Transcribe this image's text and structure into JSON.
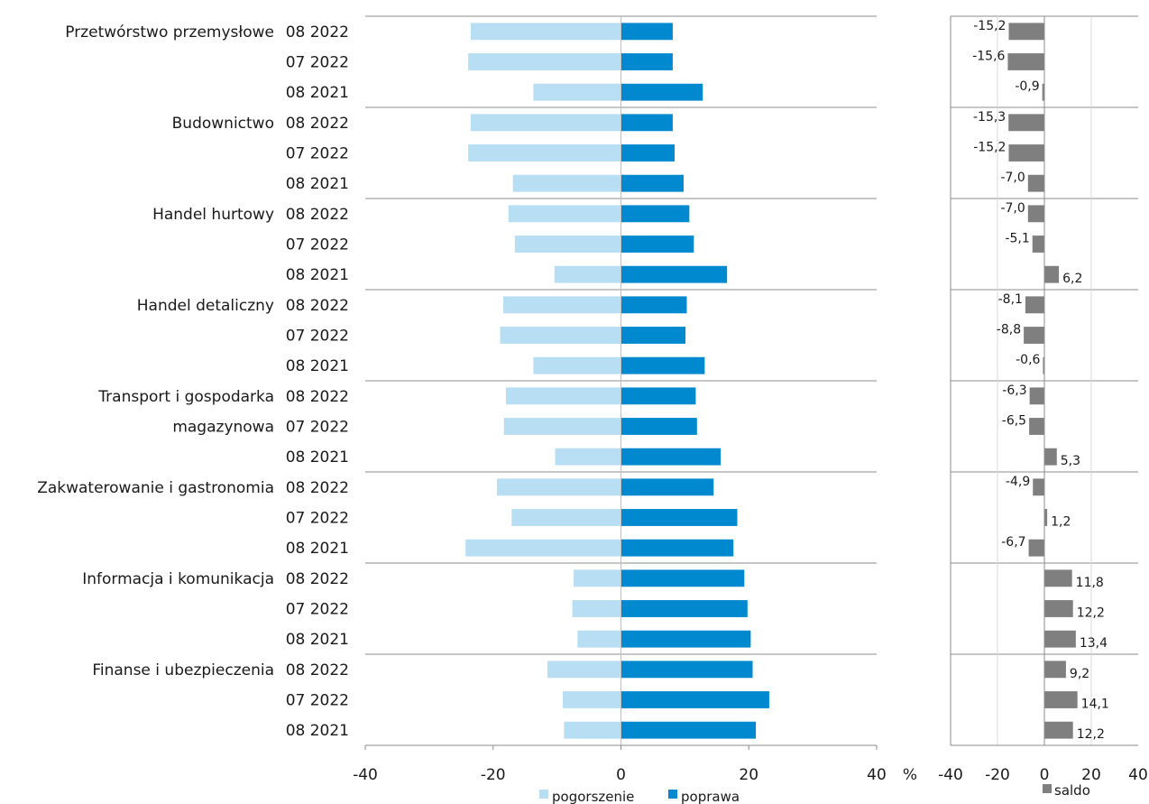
{
  "chart_data": [
    {
      "type": "bar",
      "orientation": "horizontal",
      "stacked_diverging": true,
      "groups": [
        "Przetwórstwo przemysłowe",
        "Budownictwo",
        "Handel hurtowy",
        "Handel detaliczny",
        "Transport i gospodarka magazynowa",
        "Zakwaterowanie i gastronomia",
        "Informacja i komunikacja",
        "Finanse i ubezpieczenia"
      ],
      "group_label_lines": [
        [
          "Przetwórstwo przemysłowe"
        ],
        [
          "Budownictwo"
        ],
        [
          "Handel hurtowy"
        ],
        [
          "Handel detaliczny"
        ],
        [
          "Transport i gospodarka",
          "magazynowa"
        ],
        [
          "Zakwaterowanie i gastronomia"
        ],
        [
          "Informacja i komunikacja"
        ],
        [
          "Finanse i ubezpieczenia"
        ]
      ],
      "periods": [
        "08 2022",
        "07 2022",
        "08 2021"
      ],
      "series": [
        {
          "name": "pogorszenie",
          "color": "#b7def2",
          "values": [
            [
              -23.5,
              -23.9,
              -13.7
            ],
            [
              -23.5,
              -23.9,
              -16.9
            ],
            [
              -17.6,
              -16.6,
              -10.4
            ],
            [
              -18.4,
              -18.9,
              -13.7
            ],
            [
              -18.0,
              -18.3,
              -10.3
            ],
            [
              -19.4,
              -17.1,
              -24.3
            ],
            [
              -7.4,
              -7.6,
              -6.8
            ],
            [
              -11.5,
              -9.1,
              -8.9
            ]
          ]
        },
        {
          "name": "poprawa",
          "color": "#0089cf",
          "values": [
            [
              8.1,
              8.1,
              12.8
            ],
            [
              8.1,
              8.4,
              9.8
            ],
            [
              10.7,
              11.4,
              16.6
            ],
            [
              10.3,
              10.1,
              13.1
            ],
            [
              11.7,
              11.9,
              15.6
            ],
            [
              14.5,
              18.2,
              17.6
            ],
            [
              19.3,
              19.8,
              20.3
            ],
            [
              20.6,
              23.2,
              21.1
            ]
          ]
        }
      ],
      "xlim": [
        -40,
        40
      ],
      "xticks": [
        "-40",
        "-20",
        "0",
        "20",
        "40"
      ],
      "unit_label": "%"
    },
    {
      "type": "bar",
      "orientation": "horizontal",
      "series": [
        {
          "name": "saldo",
          "color": "#7f7f7f",
          "values": [
            [
              -15.2,
              -15.6,
              -0.9
            ],
            [
              -15.3,
              -15.2,
              -7.0
            ],
            [
              -7.0,
              -5.1,
              6.2
            ],
            [
              -8.1,
              -8.8,
              -0.6
            ],
            [
              -6.3,
              -6.5,
              5.3
            ],
            [
              -4.9,
              1.2,
              -6.7
            ],
            [
              11.8,
              12.2,
              13.4
            ],
            [
              9.2,
              14.1,
              12.2
            ]
          ],
          "labels": [
            [
              "-15,2",
              "-15,6",
              "-0,9"
            ],
            [
              "-15,3",
              "-15,2",
              "-7,0"
            ],
            [
              "-7,0",
              "-5,1",
              "6,2"
            ],
            [
              "-8,1",
              "-8,8",
              "-0,6"
            ],
            [
              "-6,3",
              "-6,5",
              "5,3"
            ],
            [
              "-4,9",
              "1,2",
              "-6,7"
            ],
            [
              "11,8",
              "12,2",
              "13,4"
            ],
            [
              "9,2",
              "14,1",
              "12,2"
            ]
          ]
        }
      ],
      "xlim": [
        -40,
        40
      ],
      "xticks": [
        "-40",
        "-20",
        "0",
        "20",
        "40"
      ],
      "grid": true
    }
  ],
  "colors": {
    "pogorszenie": "#b7def2",
    "poprawa": "#0089cf",
    "saldo": "#7f7f7f",
    "axis": "#8c8c8c",
    "grid": "#d9d9d9"
  }
}
